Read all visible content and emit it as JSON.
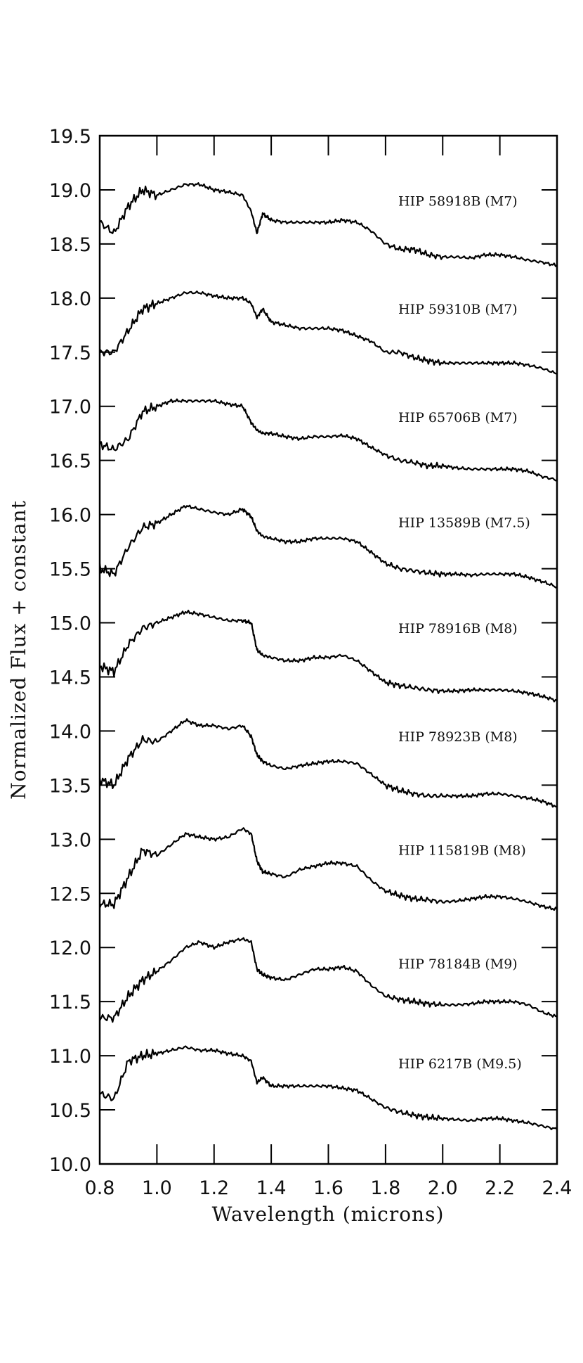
{
  "chart_data": {
    "type": "line",
    "title": "",
    "xlabel": "Wavelength (microns)",
    "ylabel": "Normalized Flux + constant",
    "xlim": [
      0.8,
      2.4
    ],
    "ylim": [
      10.0,
      19.5
    ],
    "xticks": [
      "0.8",
      "1.0",
      "1.2",
      "1.4",
      "1.6",
      "1.8",
      "2.0",
      "2.2",
      "2.4"
    ],
    "yticks": [
      "10.0",
      "10.5",
      "11.0",
      "11.5",
      "12.0",
      "12.5",
      "13.0",
      "13.5",
      "14.0",
      "14.5",
      "15.0",
      "15.5",
      "16.0",
      "16.5",
      "17.0",
      "17.5",
      "18.0",
      "18.5",
      "19.0",
      "19.5"
    ],
    "grid": false,
    "legend": "none",
    "line_color": "#000000",
    "series": [
      {
        "name": "HIP 58918B (M7)",
        "x": [
          0.8,
          0.85,
          0.9,
          0.95,
          1.0,
          1.05,
          1.1,
          1.15,
          1.2,
          1.25,
          1.3,
          1.33,
          1.35,
          1.37,
          1.4,
          1.45,
          1.5,
          1.55,
          1.6,
          1.65,
          1.7,
          1.75,
          1.8,
          1.85,
          1.9,
          1.95,
          2.0,
          2.05,
          2.1,
          2.15,
          2.2,
          2.25,
          2.3,
          2.35,
          2.4
        ],
        "y": [
          18.7,
          18.6,
          18.85,
          19.0,
          18.95,
          19.0,
          19.05,
          19.05,
          19.0,
          18.98,
          18.95,
          18.8,
          18.6,
          18.78,
          18.72,
          18.7,
          18.7,
          18.7,
          18.7,
          18.72,
          18.7,
          18.62,
          18.5,
          18.45,
          18.45,
          18.4,
          18.38,
          18.38,
          18.37,
          18.4,
          18.4,
          18.38,
          18.35,
          18.33,
          18.3
        ]
      },
      {
        "name": "HIP 59310B (M7)",
        "x": [
          0.8,
          0.85,
          0.9,
          0.95,
          1.0,
          1.05,
          1.1,
          1.15,
          1.2,
          1.25,
          1.3,
          1.33,
          1.35,
          1.37,
          1.4,
          1.45,
          1.5,
          1.55,
          1.6,
          1.65,
          1.7,
          1.75,
          1.8,
          1.85,
          1.9,
          1.95,
          2.0,
          2.05,
          2.1,
          2.15,
          2.2,
          2.25,
          2.3,
          2.35,
          2.4
        ],
        "y": [
          17.5,
          17.5,
          17.7,
          17.9,
          17.95,
          18.0,
          18.05,
          18.05,
          18.02,
          18.0,
          18.0,
          17.95,
          17.82,
          17.9,
          17.78,
          17.75,
          17.72,
          17.72,
          17.72,
          17.7,
          17.65,
          17.6,
          17.5,
          17.5,
          17.45,
          17.42,
          17.4,
          17.4,
          17.4,
          17.4,
          17.4,
          17.4,
          17.38,
          17.35,
          17.3
        ]
      },
      {
        "name": "HIP 65706B (M7)",
        "x": [
          0.8,
          0.85,
          0.9,
          0.95,
          1.0,
          1.05,
          1.1,
          1.15,
          1.2,
          1.25,
          1.3,
          1.33,
          1.35,
          1.37,
          1.4,
          1.45,
          1.5,
          1.55,
          1.6,
          1.65,
          1.7,
          1.75,
          1.8,
          1.85,
          1.9,
          1.95,
          2.0,
          2.05,
          2.1,
          2.15,
          2.2,
          2.25,
          2.3,
          2.35,
          2.4
        ],
        "y": [
          16.65,
          16.6,
          16.7,
          16.95,
          17.0,
          17.05,
          17.05,
          17.05,
          17.05,
          17.02,
          17.0,
          16.85,
          16.78,
          16.75,
          16.75,
          16.72,
          16.7,
          16.72,
          16.72,
          16.73,
          16.7,
          16.62,
          16.55,
          16.5,
          16.48,
          16.45,
          16.45,
          16.43,
          16.42,
          16.42,
          16.42,
          16.42,
          16.4,
          16.35,
          16.32
        ]
      },
      {
        "name": "HIP 13589B (M7.5)",
        "x": [
          0.8,
          0.85,
          0.9,
          0.95,
          1.0,
          1.05,
          1.1,
          1.15,
          1.2,
          1.25,
          1.3,
          1.33,
          1.35,
          1.37,
          1.4,
          1.45,
          1.5,
          1.55,
          1.6,
          1.65,
          1.7,
          1.75,
          1.8,
          1.85,
          1.9,
          1.95,
          2.0,
          2.05,
          2.1,
          2.15,
          2.2,
          2.25,
          2.3,
          2.35,
          2.4
        ],
        "y": [
          15.5,
          15.45,
          15.7,
          15.88,
          15.92,
          16.0,
          16.08,
          16.05,
          16.02,
          16.0,
          16.05,
          15.98,
          15.85,
          15.8,
          15.78,
          15.75,
          15.75,
          15.78,
          15.78,
          15.78,
          15.75,
          15.65,
          15.55,
          15.5,
          15.48,
          15.46,
          15.45,
          15.45,
          15.44,
          15.45,
          15.45,
          15.45,
          15.42,
          15.38,
          15.33
        ]
      },
      {
        "name": "HIP 78916B (M8)",
        "x": [
          0.8,
          0.85,
          0.9,
          0.95,
          1.0,
          1.05,
          1.1,
          1.15,
          1.2,
          1.25,
          1.3,
          1.33,
          1.35,
          1.37,
          1.4,
          1.45,
          1.5,
          1.55,
          1.6,
          1.65,
          1.7,
          1.75,
          1.8,
          1.85,
          1.9,
          1.95,
          2.0,
          2.05,
          2.1,
          2.15,
          2.2,
          2.25,
          2.3,
          2.35,
          2.4
        ],
        "y": [
          14.6,
          14.55,
          14.8,
          14.95,
          15.0,
          15.05,
          15.1,
          15.08,
          15.05,
          15.02,
          15.02,
          15.0,
          14.75,
          14.7,
          14.68,
          14.65,
          14.65,
          14.68,
          14.68,
          14.7,
          14.65,
          14.55,
          14.45,
          14.42,
          14.4,
          14.38,
          14.37,
          14.37,
          14.38,
          14.38,
          14.38,
          14.37,
          14.35,
          14.32,
          14.28
        ]
      },
      {
        "name": "HIP 78923B (M8)",
        "x": [
          0.8,
          0.85,
          0.9,
          0.95,
          1.0,
          1.05,
          1.1,
          1.15,
          1.2,
          1.25,
          1.3,
          1.33,
          1.35,
          1.37,
          1.4,
          1.45,
          1.5,
          1.55,
          1.6,
          1.65,
          1.7,
          1.75,
          1.8,
          1.85,
          1.9,
          1.95,
          2.0,
          2.05,
          2.1,
          2.15,
          2.2,
          2.25,
          2.3,
          2.35,
          2.4
        ],
        "y": [
          13.55,
          13.5,
          13.75,
          13.92,
          13.9,
          14.0,
          14.1,
          14.05,
          14.05,
          14.02,
          14.05,
          13.95,
          13.78,
          13.72,
          13.68,
          13.65,
          13.68,
          13.7,
          13.72,
          13.72,
          13.7,
          13.6,
          13.5,
          13.45,
          13.42,
          13.4,
          13.4,
          13.4,
          13.4,
          13.42,
          13.42,
          13.4,
          13.38,
          13.35,
          13.3
        ]
      },
      {
        "name": "HIP 115819B (M8)",
        "x": [
          0.8,
          0.85,
          0.9,
          0.95,
          1.0,
          1.05,
          1.1,
          1.15,
          1.2,
          1.25,
          1.3,
          1.33,
          1.35,
          1.37,
          1.4,
          1.45,
          1.5,
          1.55,
          1.6,
          1.65,
          1.7,
          1.75,
          1.8,
          1.85,
          1.9,
          1.95,
          2.0,
          2.05,
          2.1,
          2.15,
          2.2,
          2.25,
          2.3,
          2.35,
          2.4
        ],
        "y": [
          12.4,
          12.4,
          12.65,
          12.9,
          12.85,
          12.95,
          13.05,
          13.02,
          13.0,
          13.02,
          13.1,
          13.05,
          12.8,
          12.7,
          12.68,
          12.65,
          12.72,
          12.75,
          12.78,
          12.78,
          12.75,
          12.62,
          12.52,
          12.48,
          12.45,
          12.44,
          12.42,
          12.43,
          12.45,
          12.47,
          12.47,
          12.45,
          12.42,
          12.38,
          12.35
        ]
      },
      {
        "name": "HIP 78184B (M9)",
        "x": [
          0.8,
          0.85,
          0.9,
          0.95,
          1.0,
          1.05,
          1.1,
          1.15,
          1.2,
          1.25,
          1.3,
          1.33,
          1.35,
          1.37,
          1.4,
          1.45,
          1.5,
          1.55,
          1.6,
          1.65,
          1.7,
          1.75,
          1.8,
          1.85,
          1.9,
          1.95,
          2.0,
          2.05,
          2.1,
          2.15,
          2.2,
          2.25,
          2.3,
          2.35,
          2.4
        ],
        "y": [
          11.35,
          11.35,
          11.55,
          11.7,
          11.78,
          11.88,
          12.0,
          12.05,
          12.0,
          12.05,
          12.08,
          12.05,
          11.8,
          11.75,
          11.72,
          11.7,
          11.75,
          11.8,
          11.8,
          11.82,
          11.78,
          11.65,
          11.55,
          11.52,
          11.5,
          11.48,
          11.47,
          11.47,
          11.48,
          11.5,
          11.5,
          11.5,
          11.47,
          11.4,
          11.36
        ]
      },
      {
        "name": "HIP 6217B (M9.5)",
        "x": [
          0.8,
          0.85,
          0.9,
          0.95,
          1.0,
          1.05,
          1.1,
          1.15,
          1.2,
          1.25,
          1.3,
          1.33,
          1.35,
          1.37,
          1.4,
          1.45,
          1.5,
          1.55,
          1.6,
          1.65,
          1.7,
          1.75,
          1.8,
          1.85,
          1.9,
          1.95,
          2.0,
          2.05,
          2.1,
          2.15,
          2.2,
          2.25,
          2.3,
          2.35,
          2.4
        ],
        "y": [
          10.65,
          10.6,
          10.95,
          11.0,
          11.02,
          11.05,
          11.08,
          11.05,
          11.05,
          11.02,
          11.0,
          10.95,
          10.75,
          10.8,
          10.72,
          10.72,
          10.72,
          10.72,
          10.72,
          10.7,
          10.68,
          10.6,
          10.52,
          10.48,
          10.45,
          10.43,
          10.42,
          10.41,
          10.4,
          10.42,
          10.42,
          10.4,
          10.38,
          10.35,
          10.32
        ]
      }
    ]
  }
}
